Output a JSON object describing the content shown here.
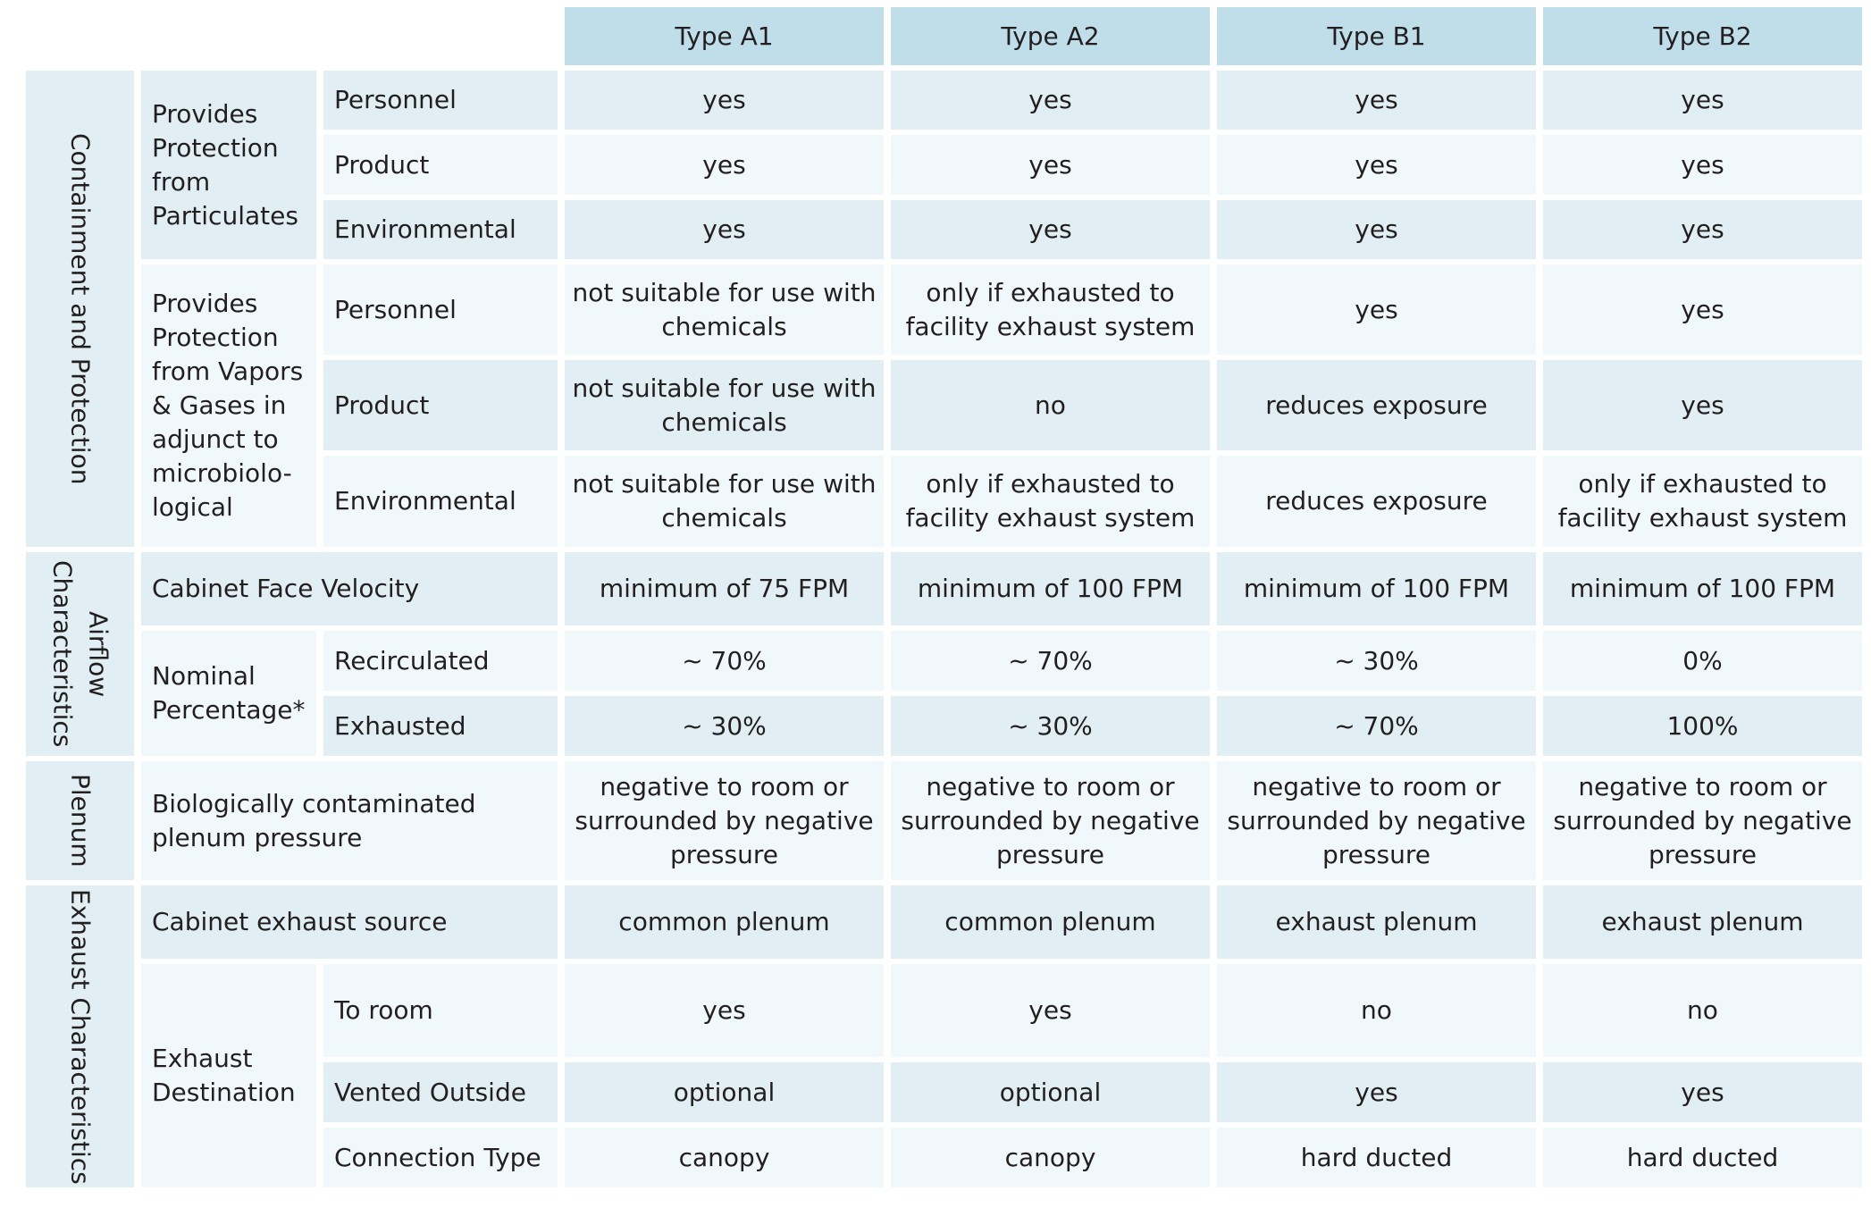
{
  "header": {
    "types": [
      "Type A1",
      "Type A2",
      "Type B1",
      "Type B2"
    ]
  },
  "sections": {
    "containment": "Containment and Protection",
    "airflow": "Airflow Characteristics",
    "plenum": "Plenum",
    "exhaust": "Exhaust Characteristics"
  },
  "groups": {
    "particulates": "Provides Protection from Particulates",
    "vapors": "Provides Protection from Vapors & Gases in adjunct to microbiolo-logical",
    "face_velocity": "Cabinet Face Velocity",
    "nominal": "Nominal Percentage*",
    "plenum_pressure": "Biologically contaminated plenum pressure",
    "exhaust_source": "Cabinet exhaust source",
    "exhaust_destination": "Exhaust Destination"
  },
  "rows": {
    "p_personnel": {
      "label": "Personnel",
      "values": [
        "yes",
        "yes",
        "yes",
        "yes"
      ]
    },
    "p_product": {
      "label": "Product",
      "values": [
        "yes",
        "yes",
        "yes",
        "yes"
      ]
    },
    "p_environmental": {
      "label": "Environmental",
      "values": [
        "yes",
        "yes",
        "yes",
        "yes"
      ]
    },
    "v_personnel": {
      "label": "Personnel",
      "values": [
        "not suitable for use with chemicals",
        "only if exhausted to facility exhaust system",
        "yes",
        "yes"
      ]
    },
    "v_product": {
      "label": "Product",
      "values": [
        "not suitable for use with chemicals",
        "no",
        "reduces exposure",
        "yes"
      ]
    },
    "v_environmental": {
      "label": "Environmental",
      "values": [
        "not suitable for use with chemicals",
        "only if exhausted to facility exhaust system",
        "reduces exposure",
        "only if exhausted to facility exhaust system"
      ]
    },
    "face_velocity": {
      "values": [
        "minimum of 75 FPM",
        "minimum of 100 FPM",
        "minimum of 100 FPM",
        "minimum of 100 FPM"
      ]
    },
    "recirculated": {
      "label": "Recirculated",
      "values": [
        "~ 70%",
        "~ 70%",
        "~ 30%",
        "0%"
      ]
    },
    "exhausted": {
      "label": "Exhausted",
      "values": [
        "~ 30%",
        "~ 30%",
        "~ 70%",
        "100%"
      ]
    },
    "plenum_pressure": {
      "values": [
        "negative to room or surrounded by negative pressure",
        "negative to room or surrounded by negative pressure",
        "negative to room or surrounded by negative pressure",
        "negative to room or surrounded by negative pressure"
      ]
    },
    "exhaust_source": {
      "values": [
        "common plenum",
        "common plenum",
        "exhaust plenum",
        "exhaust plenum"
      ]
    },
    "to_room": {
      "label": "To room",
      "values": [
        "yes",
        "yes",
        "no",
        "no"
      ]
    },
    "vented_outside": {
      "label": "Vented Outside",
      "values": [
        "optional",
        "optional",
        "yes",
        "yes"
      ]
    },
    "connection_type": {
      "label": "Connection Type",
      "values": [
        "canopy",
        "canopy",
        "hard ducted",
        "hard ducted"
      ]
    }
  },
  "colors": {
    "header_bg": "#bfdeea",
    "dark_cell_bg": "#e1eff5",
    "light_cell_bg": "#f1f8fb",
    "text": "#231f20"
  }
}
